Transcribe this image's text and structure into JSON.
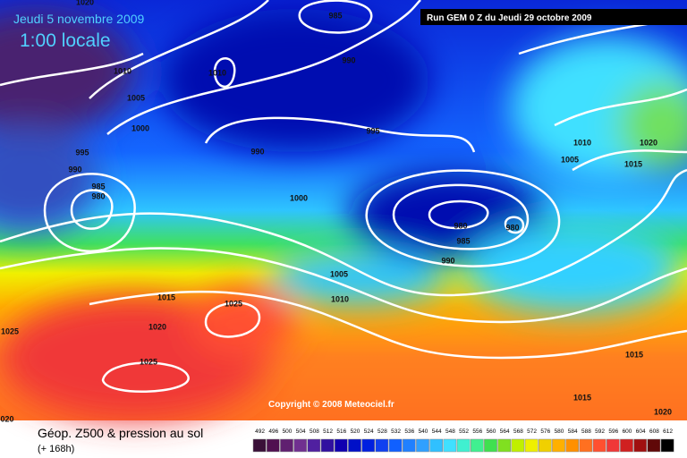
{
  "header": {
    "date": "Jeudi 5 novembre 2009",
    "time": "1:00 locale",
    "run": "Run GEM 0 Z du Jeudi 29 octobre 2009"
  },
  "isobar_labels": [
    "1020",
    "985",
    "990",
    "1010",
    "1010",
    "1005",
    "1000",
    "995",
    "990",
    "995",
    "990",
    "985",
    "980",
    "1000",
    "1010",
    "1020",
    "1005",
    "1015",
    "980",
    "980",
    "985",
    "990",
    "1005",
    "1010",
    "1015",
    "1025",
    "1020",
    "1025",
    "1025",
    "1015",
    "1015",
    "1020",
    "020"
  ],
  "copyright": "Copyright © 2008 Meteociel.fr",
  "legend": {
    "title": "Géop. Z500 & pression au sol",
    "lead": "(+ 168h)",
    "ticks": [
      492,
      496,
      500,
      504,
      508,
      512,
      516,
      520,
      524,
      528,
      532,
      536,
      540,
      544,
      548,
      552,
      556,
      560,
      564,
      568,
      572,
      576,
      580,
      584,
      588,
      592,
      596,
      600,
      604,
      608,
      612
    ]
  }
}
